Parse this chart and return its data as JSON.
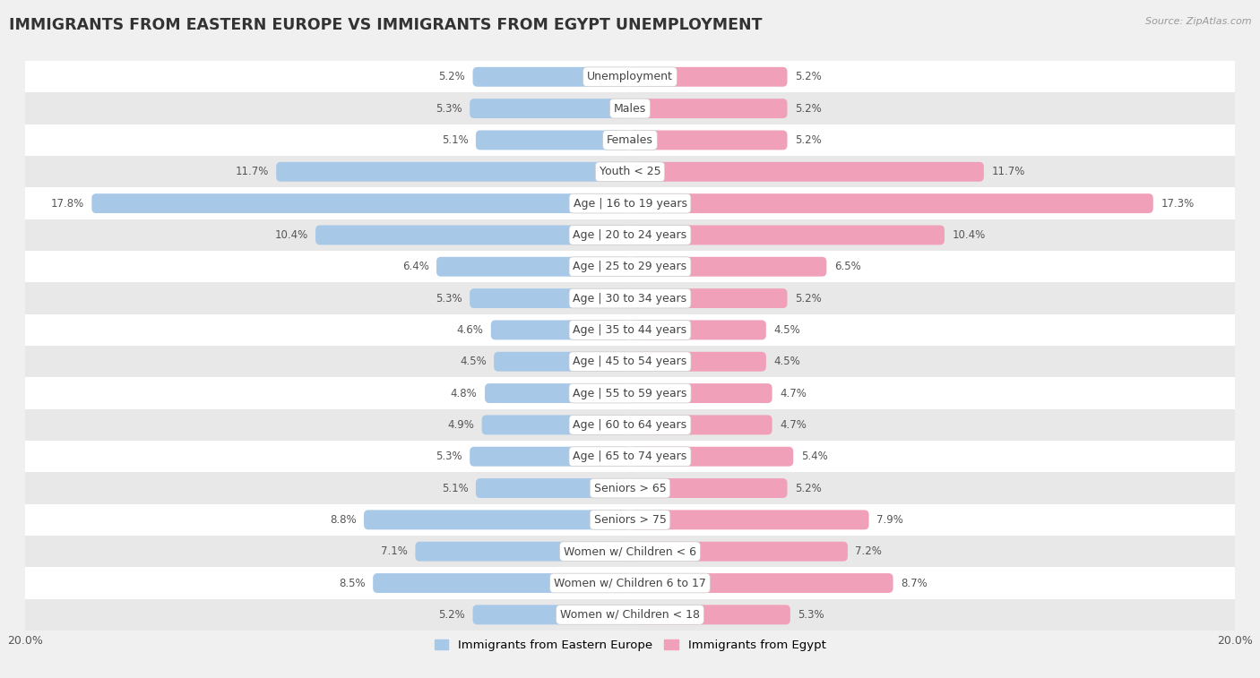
{
  "title": "IMMIGRANTS FROM EASTERN EUROPE VS IMMIGRANTS FROM EGYPT UNEMPLOYMENT",
  "source": "Source: ZipAtlas.com",
  "categories": [
    "Unemployment",
    "Males",
    "Females",
    "Youth < 25",
    "Age | 16 to 19 years",
    "Age | 20 to 24 years",
    "Age | 25 to 29 years",
    "Age | 30 to 34 years",
    "Age | 35 to 44 years",
    "Age | 45 to 54 years",
    "Age | 55 to 59 years",
    "Age | 60 to 64 years",
    "Age | 65 to 74 years",
    "Seniors > 65",
    "Seniors > 75",
    "Women w/ Children < 6",
    "Women w/ Children 6 to 17",
    "Women w/ Children < 18"
  ],
  "eastern_europe": [
    5.2,
    5.3,
    5.1,
    11.7,
    17.8,
    10.4,
    6.4,
    5.3,
    4.6,
    4.5,
    4.8,
    4.9,
    5.3,
    5.1,
    8.8,
    7.1,
    8.5,
    5.2
  ],
  "egypt": [
    5.2,
    5.2,
    5.2,
    11.7,
    17.3,
    10.4,
    6.5,
    5.2,
    4.5,
    4.5,
    4.7,
    4.7,
    5.4,
    5.2,
    7.9,
    7.2,
    8.7,
    5.3
  ],
  "color_eastern_europe": "#a8c8e8",
  "color_egypt": "#f0a0b8",
  "color_eastern_europe_bright": "#5a9fd4",
  "color_egypt_bright": "#e8607a",
  "xlim": 20.0,
  "background_color": "#f0f0f0",
  "row_color_light": "#ffffff",
  "row_color_dark": "#e8e8e8",
  "bar_height": 0.62,
  "legend_label_ee": "Immigrants from Eastern Europe",
  "legend_label_eg": "Immigrants from Egypt",
  "label_fontsize": 9.0,
  "value_fontsize": 8.5,
  "title_fontsize": 12.5
}
